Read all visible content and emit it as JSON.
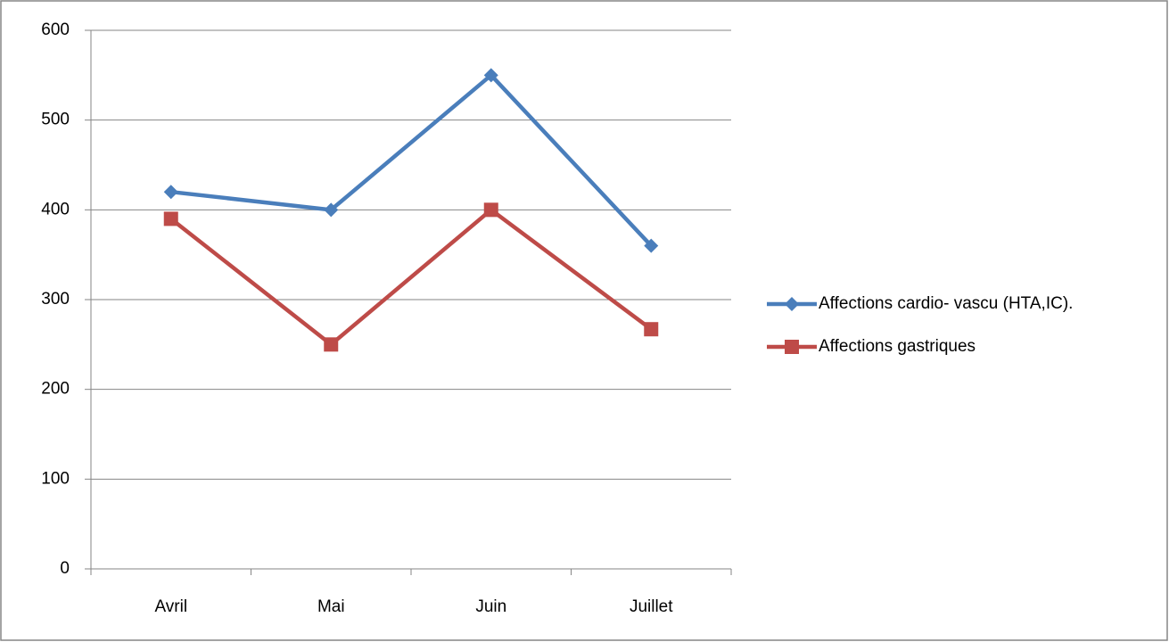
{
  "chart_data": {
    "type": "line",
    "categories": [
      "Avril",
      "Mai",
      "Juin",
      "Juillet"
    ],
    "series": [
      {
        "name": "Affections cardio- vascu (HTA,IC).",
        "color": "#4a7ebb",
        "marker": "diamond",
        "values": [
          420,
          400,
          550,
          360
        ]
      },
      {
        "name": "Affections gastriques",
        "color": "#be4b48",
        "marker": "square",
        "values": [
          390,
          250,
          400,
          267
        ]
      }
    ],
    "ylim": [
      0,
      600
    ],
    "yticks": [
      0,
      100,
      200,
      300,
      400,
      500,
      600
    ],
    "grid": true,
    "legend": "right"
  }
}
